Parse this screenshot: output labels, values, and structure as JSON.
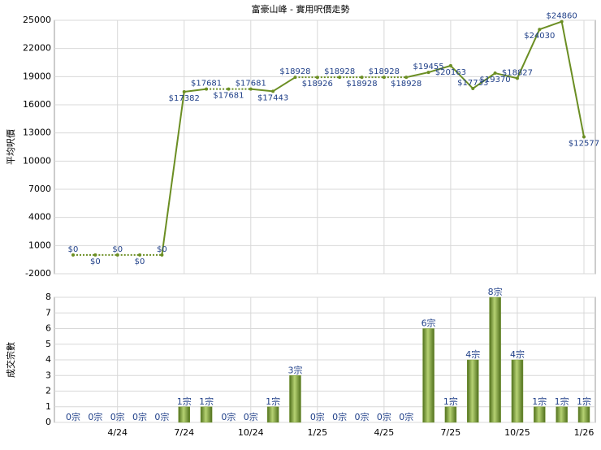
{
  "chart_data": [
    {
      "type": "line",
      "title": "富豪山峰 - 實用呎價走勢",
      "y_label": "平均呎價",
      "values": [
        0,
        0,
        0,
        0,
        0,
        17382,
        17681,
        17681,
        17681,
        17443,
        18928,
        18926,
        18928,
        18928,
        18928,
        18928,
        19455,
        20163,
        17733,
        19370,
        18827,
        24030,
        24860,
        12577
      ],
      "value_labels": [
        "$0",
        "$0",
        "$0",
        "$0",
        "$0",
        "$17382",
        "$17681",
        "$17681",
        "$17681",
        "$17443",
        "$18928",
        "$18926",
        "$18928",
        "$18928",
        "$18928",
        "$18928",
        "$19455",
        "$20163",
        "$17733",
        "$19370",
        "$18827",
        "$24030",
        "$24860",
        "$12577"
      ],
      "color": "#6b8e23",
      "ylim": [
        -2000,
        25000
      ],
      "yticks": [
        -2000,
        1000,
        4000,
        7000,
        10000,
        13000,
        16000,
        19000,
        22000,
        25000
      ],
      "grid": true
    },
    {
      "type": "bar",
      "y_label": "成交宗數",
      "categories": [
        null,
        null,
        "4/24",
        null,
        null,
        "7/24",
        null,
        null,
        "10/24",
        null,
        null,
        "1/25",
        null,
        null,
        "4/25",
        null,
        null,
        "7/25",
        null,
        null,
        "10/25",
        null,
        null,
        "1/26"
      ],
      "values": [
        0,
        0,
        0,
        0,
        0,
        1,
        1,
        0,
        0,
        1,
        3,
        0,
        0,
        0,
        0,
        0,
        6,
        1,
        4,
        8,
        4,
        1,
        1,
        1
      ],
      "value_labels": [
        "0宗",
        "0宗",
        "0宗",
        "0宗",
        "0宗",
        "1宗",
        "1宗",
        "0宗",
        "0宗",
        "1宗",
        "3宗",
        "0宗",
        "0宗",
        "0宗",
        "0宗",
        "0宗",
        "6宗",
        "1宗",
        "4宗",
        "8宗",
        "4宗",
        "1宗",
        "1宗",
        "1宗"
      ],
      "color": "#7a9a3a",
      "ylim": [
        0,
        8
      ],
      "yticks": [
        0,
        1,
        2,
        3,
        4,
        5,
        6,
        7,
        8
      ],
      "grid": true
    }
  ]
}
